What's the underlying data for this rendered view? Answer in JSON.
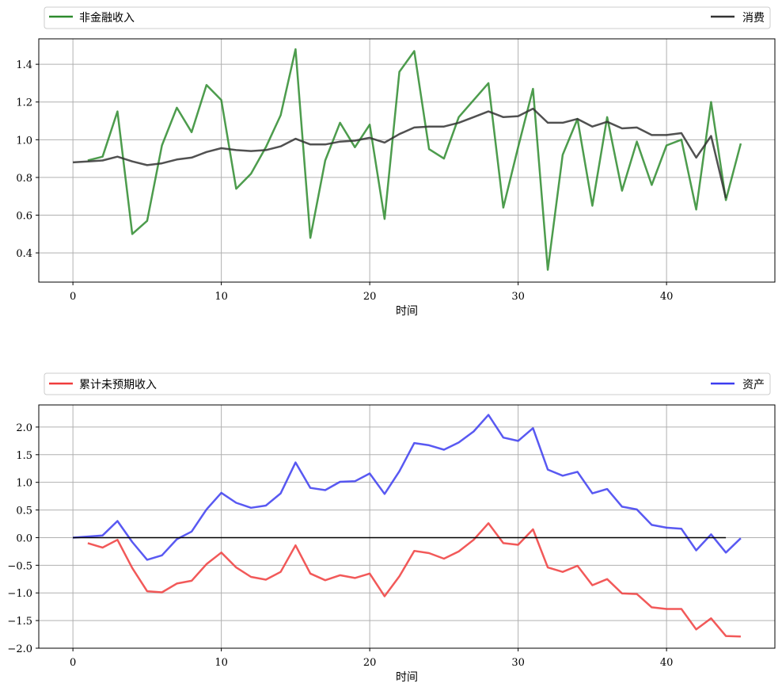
{
  "chart_data": [
    {
      "type": "line",
      "xlabel": "时间",
      "ylabel": "",
      "xlim": [
        -2.3,
        47.3
      ],
      "ylim": [
        0.245,
        1.535
      ],
      "xticks": [
        0,
        10,
        20,
        30,
        40
      ],
      "yticks": [
        0.4,
        0.6,
        0.8,
        1.0,
        1.2,
        1.4
      ],
      "ytick_labels": [
        "0.4",
        "0.6",
        "0.8",
        "1.0",
        "1.2",
        "1.4"
      ],
      "grid": true,
      "legend_left": "非金融收入",
      "legend_right": "消费",
      "series": [
        {
          "name": "非金融收入",
          "color": "#2e8b2e",
          "x": [
            1,
            2,
            3,
            4,
            5,
            6,
            7,
            8,
            9,
            10,
            11,
            12,
            13,
            14,
            15,
            16,
            17,
            18,
            19,
            20,
            21,
            22,
            23,
            24,
            25,
            26,
            27,
            28,
            29,
            30,
            31,
            32,
            33,
            34,
            35,
            36,
            37,
            38,
            39,
            40,
            41,
            42,
            43,
            44,
            45
          ],
          "values": [
            0.89,
            0.91,
            1.15,
            0.5,
            0.57,
            0.97,
            1.17,
            1.04,
            1.29,
            1.21,
            0.74,
            0.82,
            0.96,
            1.13,
            1.48,
            0.48,
            0.89,
            1.09,
            0.96,
            1.08,
            0.58,
            1.36,
            1.47,
            0.95,
            0.9,
            1.12,
            1.21,
            1.3,
            0.64,
            0.96,
            1.27,
            0.31,
            0.92,
            1.11,
            0.65,
            1.12,
            0.73,
            0.99,
            0.76,
            0.97,
            1.0,
            0.63,
            1.2,
            0.68,
            0.98
          ]
        },
        {
          "name": "消费",
          "color": "#333333",
          "x": [
            0,
            1,
            2,
            3,
            4,
            5,
            6,
            7,
            8,
            9,
            10,
            11,
            12,
            13,
            14,
            15,
            16,
            17,
            18,
            19,
            20,
            21,
            22,
            23,
            24,
            25,
            26,
            27,
            28,
            29,
            30,
            31,
            32,
            33,
            34,
            35,
            36,
            37,
            38,
            39,
            40,
            41,
            42,
            43,
            44
          ],
          "values": [
            0.88,
            0.885,
            0.89,
            0.91,
            0.885,
            0.865,
            0.875,
            0.895,
            0.905,
            0.935,
            0.955,
            0.945,
            0.94,
            0.945,
            0.965,
            1.005,
            0.975,
            0.975,
            0.99,
            0.995,
            1.01,
            0.985,
            1.03,
            1.065,
            1.07,
            1.07,
            1.09,
            1.12,
            1.15,
            1.12,
            1.125,
            1.165,
            1.09,
            1.09,
            1.11,
            1.07,
            1.095,
            1.06,
            1.065,
            1.025,
            1.025,
            1.035,
            0.905,
            1.02,
            0.69
          ]
        }
      ]
    },
    {
      "type": "line",
      "xlabel": "时间",
      "ylabel": "",
      "xlim": [
        -2.3,
        47.3
      ],
      "ylim": [
        -2.0,
        2.4
      ],
      "xticks": [
        0,
        10,
        20,
        30,
        40
      ],
      "yticks": [
        -2.0,
        -1.5,
        -1.0,
        -0.5,
        0.0,
        0.5,
        1.0,
        1.5,
        2.0
      ],
      "ytick_labels": [
        "−2.0",
        "−1.5",
        "−1.0",
        "−0.5",
        "0.0",
        "0.5",
        "1.0",
        "1.5",
        "2.0"
      ],
      "grid": true,
      "legend_left": "累计未预期收入",
      "legend_right": "资产",
      "series": [
        {
          "name": "累计未预期收入",
          "color": "#f03c3c",
          "x": [
            1,
            2,
            3,
            4,
            5,
            6,
            7,
            8,
            9,
            10,
            11,
            12,
            13,
            14,
            15,
            16,
            17,
            18,
            19,
            20,
            21,
            22,
            23,
            24,
            25,
            26,
            27,
            28,
            29,
            30,
            31,
            32,
            33,
            34,
            35,
            36,
            37,
            38,
            39,
            40,
            41,
            42,
            43,
            44,
            45
          ],
          "values": [
            -0.1,
            -0.18,
            -0.04,
            -0.55,
            -0.97,
            -0.99,
            -0.83,
            -0.78,
            -0.48,
            -0.27,
            -0.54,
            -0.71,
            -0.76,
            -0.62,
            -0.14,
            -0.65,
            -0.77,
            -0.68,
            -0.73,
            -0.65,
            -1.06,
            -0.7,
            -0.24,
            -0.28,
            -0.38,
            -0.25,
            -0.04,
            0.26,
            -0.1,
            -0.13,
            0.15,
            -0.54,
            -0.62,
            -0.51,
            -0.86,
            -0.75,
            -1.01,
            -1.02,
            -1.26,
            -1.29,
            -1.29,
            -1.66,
            -1.46,
            -1.78,
            -1.79
          ]
        },
        {
          "name": "资产",
          "color": "#3c3cf0",
          "x": [
            0,
            1,
            2,
            3,
            4,
            5,
            6,
            7,
            8,
            9,
            10,
            11,
            12,
            13,
            14,
            15,
            16,
            17,
            18,
            19,
            20,
            21,
            22,
            23,
            24,
            25,
            26,
            27,
            28,
            29,
            30,
            31,
            32,
            33,
            34,
            35,
            36,
            37,
            38,
            39,
            40,
            41,
            42,
            43,
            44,
            45
          ],
          "values": [
            0.0,
            0.02,
            0.04,
            0.3,
            -0.08,
            -0.4,
            -0.32,
            -0.03,
            0.11,
            0.51,
            0.81,
            0.63,
            0.54,
            0.58,
            0.8,
            1.36,
            0.9,
            0.86,
            1.01,
            1.02,
            1.16,
            0.79,
            1.2,
            1.71,
            1.67,
            1.59,
            1.72,
            1.92,
            2.22,
            1.81,
            1.75,
            1.98,
            1.23,
            1.12,
            1.19,
            0.8,
            0.88,
            0.56,
            0.51,
            0.23,
            0.18,
            0.16,
            -0.23,
            0.06,
            -0.27,
            -0.01
          ]
        },
        {
          "name": "",
          "color": "#000000",
          "x": [
            0,
            44
          ],
          "values": [
            0.0,
            0.0
          ]
        }
      ]
    }
  ]
}
